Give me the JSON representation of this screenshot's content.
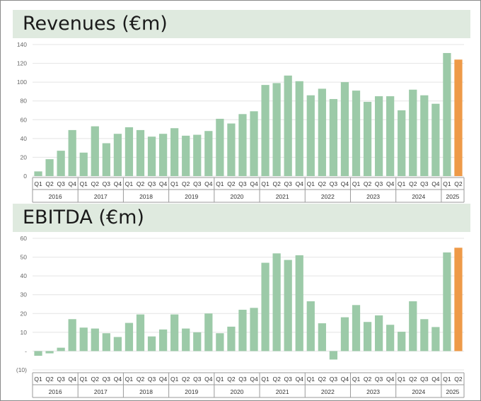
{
  "colors": {
    "bar": "#9ccaa8",
    "highlight": "#ee9a48",
    "grid": "#e4e4e4",
    "title_band": "#dfeadf"
  },
  "chart_data": [
    {
      "type": "bar",
      "title": "Revenues (€m)",
      "ylim": [
        0,
        140
      ],
      "yticks": [
        "0",
        "20",
        "40",
        "60",
        "80",
        "100",
        "120",
        "140"
      ],
      "quarters": [
        "Q1",
        "Q2",
        "Q3",
        "Q4",
        "Q1",
        "Q2",
        "Q3",
        "Q4",
        "Q1",
        "Q2",
        "Q3",
        "Q4",
        "Q1",
        "Q2",
        "Q3",
        "Q4",
        "Q1",
        "Q2",
        "Q3",
        "Q4",
        "Q1",
        "Q2",
        "Q3",
        "Q4",
        "Q1",
        "Q2",
        "Q3",
        "Q4",
        "Q1",
        "Q2",
        "Q3",
        "Q4",
        "Q1",
        "Q2",
        "Q3",
        "Q4",
        "Q1",
        "Q2"
      ],
      "years": [
        "2016",
        "2017",
        "2018",
        "2019",
        "2020",
        "2021",
        "2022",
        "2023",
        "2024",
        "2025"
      ],
      "values": [
        5,
        18,
        27,
        49,
        25,
        53,
        35,
        45,
        52,
        49,
        42,
        45,
        51,
        43,
        44,
        48,
        61,
        56,
        66,
        69,
        97,
        99,
        107,
        101,
        86,
        93,
        82,
        100,
        91,
        79,
        85,
        85,
        70,
        92,
        86,
        77,
        131,
        124
      ],
      "highlight_index": 37
    },
    {
      "type": "bar",
      "title": "EBITDA (€m)",
      "ylim": [
        -10,
        60
      ],
      "yticks": [
        "(10)",
        "-",
        "10",
        "20",
        "30",
        "40",
        "50",
        "60"
      ],
      "quarters": [
        "Q1",
        "Q2",
        "Q3",
        "Q4",
        "Q1",
        "Q2",
        "Q3",
        "Q4",
        "Q1",
        "Q2",
        "Q3",
        "Q4",
        "Q1",
        "Q2",
        "Q3",
        "Q4",
        "Q1",
        "Q2",
        "Q3",
        "Q4",
        "Q1",
        "Q2",
        "Q3",
        "Q4",
        "Q1",
        "Q2",
        "Q3",
        "Q4",
        "Q1",
        "Q2",
        "Q3",
        "Q4",
        "Q1",
        "Q2",
        "Q3",
        "Q4",
        "Q1",
        "Q2"
      ],
      "years": [
        "2016",
        "2017",
        "2018",
        "2019",
        "2020",
        "2021",
        "2022",
        "2023",
        "2024",
        "2025"
      ],
      "values": [
        -2.5,
        -1.2,
        1.8,
        17,
        12.5,
        12,
        9.5,
        7.5,
        15,
        19.5,
        7.8,
        11.5,
        19.5,
        12,
        10,
        20,
        9.5,
        13,
        22,
        23,
        47,
        52,
        48.5,
        51,
        26.5,
        14.8,
        -4.5,
        18,
        24.5,
        15.5,
        19,
        14,
        10.3,
        26.5,
        17,
        12.8,
        52.5,
        55
      ],
      "highlight_index": 37
    }
  ]
}
